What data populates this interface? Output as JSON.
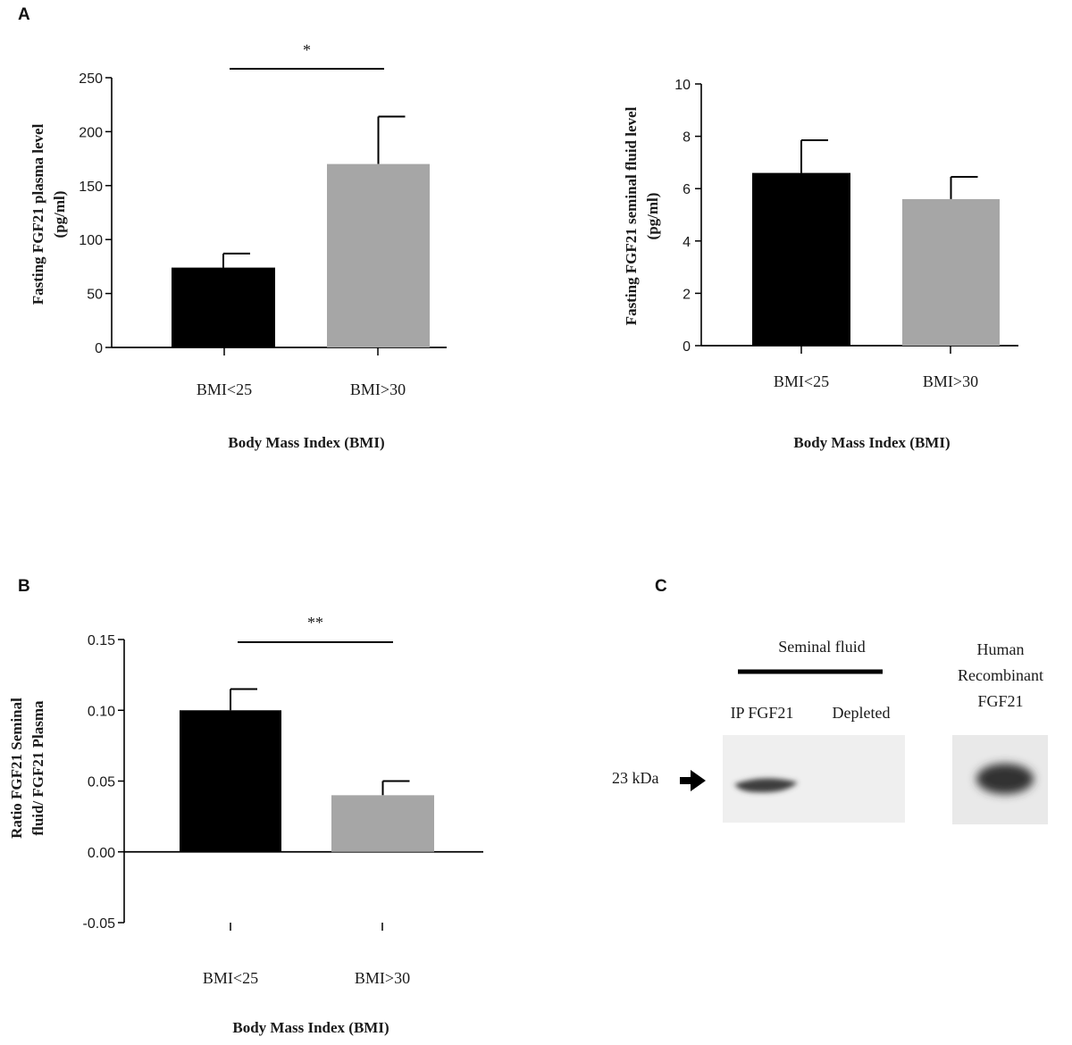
{
  "panels": {
    "a": "A",
    "b": "B",
    "c": "C"
  },
  "chart_data": [
    {
      "id": "plasma",
      "type": "bar",
      "title": "",
      "categories": [
        "BMI<25",
        "BMI>30"
      ],
      "values": [
        74,
        170
      ],
      "errors": [
        13,
        44
      ],
      "colors": [
        "#000000",
        "#a6a6a6"
      ],
      "ylabel_line1": "Fasting FGF21 plasma level",
      "ylabel_line2": "(pg/ml)",
      "xlabel": "Body Mass Index (BMI)",
      "ylim": [
        0,
        250
      ],
      "yticks": [
        0,
        50,
        100,
        150,
        200,
        250
      ],
      "significance": "*"
    },
    {
      "id": "seminal",
      "type": "bar",
      "title": "",
      "categories": [
        "BMI<25",
        "BMI>30"
      ],
      "values": [
        6.6,
        5.6
      ],
      "errors": [
        1.25,
        0.85
      ],
      "colors": [
        "#000000",
        "#a6a6a6"
      ],
      "ylabel_line1": "Fasting FGF21 seminal fluid level",
      "ylabel_line2": "(pg/ml)",
      "xlabel": "Body Mass Index (BMI)",
      "ylim": [
        0,
        10
      ],
      "yticks": [
        0,
        2,
        4,
        6,
        8,
        10
      ],
      "significance": ""
    },
    {
      "id": "ratio",
      "type": "bar",
      "title": "",
      "categories": [
        "BMI<25",
        "BMI>30"
      ],
      "values": [
        0.1,
        0.04
      ],
      "errors": [
        0.015,
        0.01
      ],
      "colors": [
        "#000000",
        "#a6a6a6"
      ],
      "ylabel_line1": "Ratio FGF21 Seminal",
      "ylabel_line2": "fluid/ FGF21 Plasma",
      "xlabel": "Body Mass Index (BMI)",
      "ylim": [
        -0.05,
        0.15
      ],
      "yticks": [
        "-0.05",
        "0.00",
        "0.05",
        "0.10",
        "0.15"
      ],
      "significance": "**"
    }
  ],
  "blot": {
    "group_label": "Seminal fluid",
    "lane1": "IP FGF21",
    "lane2": "Depleted",
    "recombinant_line1": "Human",
    "recombinant_line2": "Recombinant",
    "recombinant_line3": "FGF21",
    "marker": "23 kDa"
  }
}
